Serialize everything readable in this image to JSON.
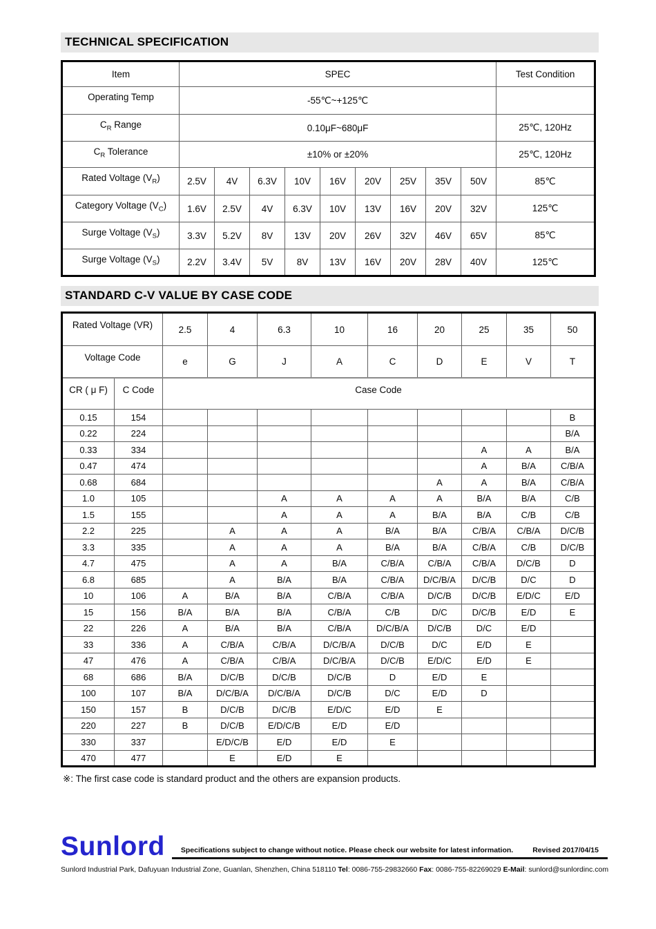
{
  "sections": {
    "technical": {
      "title": "TECHNICAL SPECIFICATION"
    },
    "cv": {
      "title": "STANDARD C-V VALUE BY CASE CODE"
    }
  },
  "spec_table": {
    "headers": {
      "item": "Item",
      "spec": "SPEC",
      "condition": "Test Condition"
    },
    "rows": [
      {
        "label_parts": [
          {
            "t": "Operating Temp"
          }
        ],
        "spec": "-55℃~+125℃",
        "cond": ""
      },
      {
        "label_parts": [
          {
            "t": "C"
          },
          {
            "s": "R"
          },
          {
            "t": " Range"
          }
        ],
        "spec": "0.10μF~680μF",
        "cond": "25℃, 120Hz"
      },
      {
        "label_parts": [
          {
            "t": "C"
          },
          {
            "s": "R"
          },
          {
            "t": " Tolerance"
          }
        ],
        "spec": "±10% or ±20%",
        "cond": "25℃, 120Hz"
      },
      {
        "label_parts": [
          {
            "t": "Rated Voltage (V"
          },
          {
            "s": "R"
          },
          {
            "t": ")"
          }
        ],
        "values": [
          "2.5V",
          "4V",
          "6.3V",
          "10V",
          "16V",
          "20V",
          "25V",
          "35V",
          "50V"
        ],
        "cond": "85℃"
      },
      {
        "label_parts": [
          {
            "t": "Category Voltage (V"
          },
          {
            "s": "C"
          },
          {
            "t": ")"
          }
        ],
        "values": [
          "1.6V",
          "2.5V",
          "4V",
          "6.3V",
          "10V",
          "13V",
          "16V",
          "20V",
          "32V"
        ],
        "cond": "125℃"
      },
      {
        "label_parts": [
          {
            "t": "Surge Voltage (V"
          },
          {
            "s": "S"
          },
          {
            "t": ")"
          }
        ],
        "values": [
          "3.3V",
          "5.2V",
          "8V",
          "13V",
          "20V",
          "26V",
          "32V",
          "46V",
          "65V"
        ],
        "cond": "85℃"
      },
      {
        "label_parts": [
          {
            "t": "Surge Voltage (V"
          },
          {
            "s": "S"
          },
          {
            "t": ")"
          }
        ],
        "values": [
          "2.2V",
          "3.4V",
          "5V",
          "8V",
          "13V",
          "16V",
          "20V",
          "28V",
          "40V"
        ],
        "cond": "125℃"
      }
    ]
  },
  "cv_table": {
    "rated_voltage_label": "Rated Voltage (VR)",
    "rated_voltages": [
      "2.5",
      "4",
      "6.3",
      "10",
      "16",
      "20",
      "25",
      "35",
      "50"
    ],
    "voltage_code_label": "Voltage Code",
    "voltage_codes": [
      "e",
      "G",
      "J",
      "A",
      "C",
      "D",
      "E",
      "V",
      "T"
    ],
    "cr_label": "CR ( μ F)",
    "c_code_label": "C Code",
    "case_code_label": "Case Code",
    "rows": [
      {
        "cr": "0.15",
        "code": "154",
        "cells": [
          "",
          "",
          "",
          "",
          "",
          "",
          "",
          "",
          "B"
        ]
      },
      {
        "cr": "0.22",
        "code": "224",
        "cells": [
          "",
          "",
          "",
          "",
          "",
          "",
          "",
          "",
          "B/A"
        ]
      },
      {
        "cr": "0.33",
        "code": "334",
        "cells": [
          "",
          "",
          "",
          "",
          "",
          "",
          "A",
          "A",
          "B/A"
        ]
      },
      {
        "cr": "0.47",
        "code": "474",
        "cells": [
          "",
          "",
          "",
          "",
          "",
          "",
          "A",
          "B/A",
          "C/B/A"
        ]
      },
      {
        "cr": "0.68",
        "code": "684",
        "cells": [
          "",
          "",
          "",
          "",
          "",
          "A",
          "A",
          "B/A",
          "C/B/A"
        ]
      },
      {
        "cr": "1.0",
        "code": "105",
        "cells": [
          "",
          "",
          "A",
          "A",
          "A",
          "A",
          "B/A",
          "B/A",
          "C/B"
        ]
      },
      {
        "cr": "1.5",
        "code": "155",
        "cells": [
          "",
          "",
          "A",
          "A",
          "A",
          "B/A",
          "B/A",
          "C/B",
          "C/B"
        ]
      },
      {
        "cr": "2.2",
        "code": "225",
        "cells": [
          "",
          "A",
          "A",
          "A",
          "B/A",
          "B/A",
          "C/B/A",
          "C/B/A",
          "D/C/B"
        ]
      },
      {
        "cr": "3.3",
        "code": "335",
        "cells": [
          "",
          "A",
          "A",
          "A",
          "B/A",
          "B/A",
          "C/B/A",
          "C/B",
          "D/C/B"
        ]
      },
      {
        "cr": "4.7",
        "code": "475",
        "cells": [
          "",
          "A",
          "A",
          "B/A",
          "C/B/A",
          "C/B/A",
          "C/B/A",
          "D/C/B",
          "D"
        ]
      },
      {
        "cr": "6.8",
        "code": "685",
        "cells": [
          "",
          "A",
          "B/A",
          "B/A",
          "C/B/A",
          "D/C/B/A",
          "D/C/B",
          "D/C",
          "D"
        ]
      },
      {
        "cr": "10",
        "code": "106",
        "cells": [
          "A",
          "B/A",
          "B/A",
          "C/B/A",
          "C/B/A",
          "D/C/B",
          "D/C/B",
          "E/D/C",
          "E/D"
        ]
      },
      {
        "cr": "15",
        "code": "156",
        "cells": [
          "B/A",
          "B/A",
          "B/A",
          "C/B/A",
          "C/B",
          "D/C",
          "D/C/B",
          "E/D",
          "E"
        ]
      },
      {
        "cr": "22",
        "code": "226",
        "cells": [
          "A",
          "B/A",
          "B/A",
          "C/B/A",
          "D/C/B/A",
          "D/C/B",
          "D/C",
          "E/D",
          ""
        ]
      },
      {
        "cr": "33",
        "code": "336",
        "cells": [
          "A",
          "C/B/A",
          "C/B/A",
          "D/C/B/A",
          "D/C/B",
          "D/C",
          "E/D",
          "E",
          ""
        ]
      },
      {
        "cr": "47",
        "code": "476",
        "cells": [
          "A",
          "C/B/A",
          "C/B/A",
          "D/C/B/A",
          "D/C/B",
          "E/D/C",
          "E/D",
          "E",
          ""
        ]
      },
      {
        "cr": "68",
        "code": "686",
        "cells": [
          "B/A",
          "D/C/B",
          "D/C/B",
          "D/C/B",
          "D",
          "E/D",
          "E",
          "",
          ""
        ]
      },
      {
        "cr": "100",
        "code": "107",
        "cells": [
          "B/A",
          "D/C/B/A",
          "D/C/B/A",
          "D/C/B",
          "D/C",
          "E/D",
          "D",
          "",
          ""
        ]
      },
      {
        "cr": "150",
        "code": "157",
        "cells": [
          "B",
          "D/C/B",
          "D/C/B",
          "E/D/C",
          "E/D",
          "E",
          "",
          "",
          ""
        ]
      },
      {
        "cr": "220",
        "code": "227",
        "cells": [
          "B",
          "D/C/B",
          "E/D/C/B",
          "E/D",
          "E/D",
          "",
          "",
          "",
          ""
        ]
      },
      {
        "cr": "330",
        "code": "337",
        "cells": [
          "",
          "E/D/C/B",
          "E/D",
          "E/D",
          "E",
          "",
          "",
          "",
          ""
        ]
      },
      {
        "cr": "470",
        "code": "477",
        "cells": [
          "",
          "E",
          "E/D",
          "E",
          "",
          "",
          "",
          "",
          ""
        ]
      }
    ]
  },
  "note": "※: The first case code is standard product and the others are expansion products.",
  "footer": {
    "logo": "Sunlord",
    "tagline": "Specifications subject to change without notice. Please check our website for latest information.",
    "revised": "Revised 2017/04/15",
    "address": {
      "p1": "Sunlord Industrial Park, Dafuyuan Industrial Zone, Guanlan, Shenzhen, China 518110 ",
      "tel_label": "Tel",
      "tel": ": 0086-755-29832660 ",
      "fax_label": "Fax",
      "fax": ": 0086-755-82269029 ",
      "email_label": "E-Mail",
      "email": ": sunlord@sunlordinc.com"
    }
  },
  "colors": {
    "title_band": "#e7e7e7",
    "logo_blue": "#2424cd",
    "border_outer": "#000000",
    "border_inner": "#5e5e5e"
  }
}
